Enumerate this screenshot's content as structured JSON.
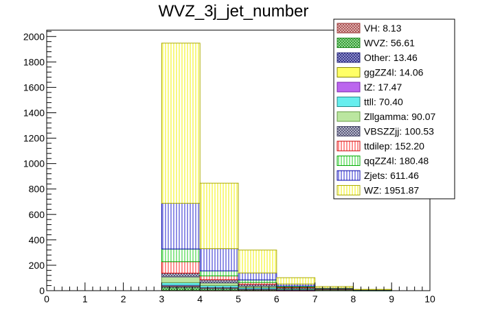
{
  "chart_data": {
    "type": "bar",
    "title": "WVZ_3j_jet_number",
    "xlabel": "",
    "ylabel": "",
    "stacked": true,
    "xlim": [
      0,
      10
    ],
    "ylim": [
      0,
      2050
    ],
    "xticks": [
      "0",
      "1",
      "2",
      "3",
      "4",
      "5",
      "6",
      "7",
      "8",
      "9",
      "10"
    ],
    "yticks": [
      "0",
      "200",
      "400",
      "600",
      "800",
      "1000",
      "1200",
      "1400",
      "1600",
      "1800",
      "2000"
    ],
    "bins": [
      [
        3,
        4
      ],
      [
        4,
        5
      ],
      [
        5,
        6
      ],
      [
        6,
        7
      ],
      [
        7,
        8
      ],
      [
        8,
        9
      ]
    ],
    "grid": false,
    "legend_position": "top-right",
    "legend": [
      {
        "label": "VH: 8.13",
        "fill": "#e0a0a0",
        "stroke": "#a04040",
        "pattern": "cross"
      },
      {
        "label": "WVZ: 56.61",
        "fill": "#66dd66",
        "stroke": "#228822",
        "pattern": "cross"
      },
      {
        "label": "Other: 13.46",
        "fill": "#6666cc",
        "stroke": "#222277",
        "pattern": "cross"
      },
      {
        "label": "ggZZ4l: 14.06",
        "fill": "#ffff66",
        "stroke": "#888800",
        "pattern": "solid"
      },
      {
        "label": "tZ: 17.47",
        "fill": "#bb66ee",
        "stroke": "#7722aa",
        "pattern": "solid"
      },
      {
        "label": "ttll: 70.40",
        "fill": "#66eeee",
        "stroke": "#228888",
        "pattern": "solid"
      },
      {
        "label": "Zllgamma: 90.07",
        "fill": "#bbe6a0",
        "stroke": "#669944",
        "pattern": "solid"
      },
      {
        "label": "VBSZZjj: 100.53",
        "fill": "#aaaacc",
        "stroke": "#444466",
        "pattern": "cross"
      },
      {
        "label": "ttdilep: 152.20",
        "fill": "#ff2222",
        "stroke": "#cc0000",
        "pattern": "vlines"
      },
      {
        "label": "qqZZ4l: 180.48",
        "fill": "#22cc22",
        "stroke": "#00aa00",
        "pattern": "vlines"
      },
      {
        "label": "Zjets: 611.46",
        "fill": "#2222cc",
        "stroke": "#0000aa",
        "pattern": "vlines"
      },
      {
        "label": "WZ: 1951.87",
        "fill": "#f2f200",
        "stroke": "#aaaa00",
        "pattern": "vlines"
      }
    ],
    "series": [
      {
        "name": "VH: 8.13",
        "values": [
          2,
          1,
          0.5,
          0.2,
          0,
          0
        ]
      },
      {
        "name": "WVZ: 56.61",
        "values": [
          25,
          15,
          8,
          4,
          2,
          1
        ]
      },
      {
        "name": "Other: 13.46",
        "values": [
          5,
          3,
          2,
          1,
          0.5,
          0
        ]
      },
      {
        "name": "ggZZ4l: 14.06",
        "values": [
          5,
          3,
          2,
          1,
          0.5,
          0
        ]
      },
      {
        "name": "tZ: 17.47",
        "values": [
          6,
          4,
          2,
          1,
          0.5,
          0
        ]
      },
      {
        "name": "ttll: 70.40",
        "values": [
          20,
          15,
          10,
          5,
          2,
          1
        ]
      },
      {
        "name": "Zllgamma: 90.07",
        "values": [
          45,
          20,
          10,
          4,
          2,
          1
        ]
      },
      {
        "name": "VBSZZjj: 100.53",
        "values": [
          30,
          25,
          15,
          8,
          3,
          1
        ]
      },
      {
        "name": "ttdilep: 152.20",
        "values": [
          90,
          30,
          15,
          5,
          2,
          1
        ]
      },
      {
        "name": "qqZZ4l: 180.48",
        "values": [
          100,
          40,
          20,
          8,
          3,
          1
        ]
      },
      {
        "name": "Zjets: 611.46",
        "values": [
          360,
          175,
          55,
          15,
          5,
          1
        ]
      },
      {
        "name": "WZ: 1951.87",
        "values": [
          1260,
          515,
          180,
          50,
          12,
          3
        ]
      }
    ]
  }
}
